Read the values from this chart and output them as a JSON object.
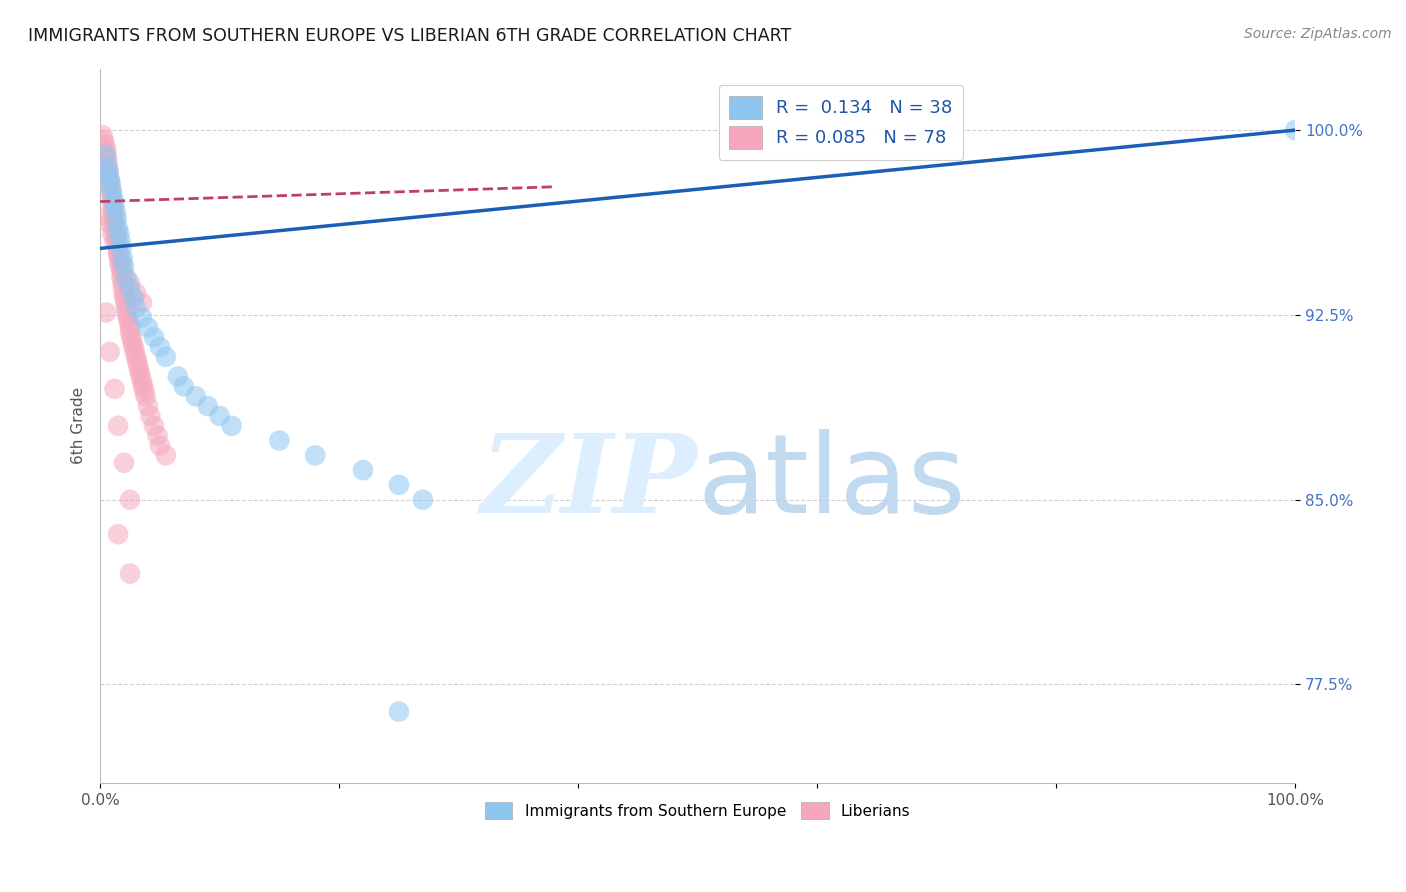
{
  "title": "IMMIGRANTS FROM SOUTHERN EUROPE VS LIBERIAN 6TH GRADE CORRELATION CHART",
  "source": "Source: ZipAtlas.com",
  "ylabel": "6th Grade",
  "xlim": [
    0,
    1.0
  ],
  "ylim": [
    0.735,
    1.025
  ],
  "yticks": [
    0.775,
    0.85,
    0.925,
    1.0
  ],
  "yticklabels": [
    "77.5%",
    "85.0%",
    "92.5%",
    "100.0%"
  ],
  "blue_R": 0.134,
  "blue_N": 38,
  "pink_R": 0.085,
  "pink_N": 78,
  "blue_label": "Immigrants from Southern Europe",
  "pink_label": "Liberians",
  "title_color": "#1a1a1a",
  "source_color": "#888888",
  "ylabel_color": "#555555",
  "ytick_color": "#4472c4",
  "xtick_color": "#555555",
  "blue_color": "#8ec6f0",
  "pink_color": "#f5a8bc",
  "blue_line_color": "#1a5fb4",
  "pink_line_color": "#c04060",
  "grid_color": "#cccccc",
  "blue_trend_x": [
    0.0,
    1.0
  ],
  "blue_trend_y": [
    0.952,
    1.0
  ],
  "pink_trend_x": [
    0.0,
    0.38
  ],
  "pink_trend_y": [
    0.971,
    0.977
  ],
  "blue_scatter_x": [
    0.005,
    0.006,
    0.007,
    0.008,
    0.009,
    0.01,
    0.011,
    0.012,
    0.013,
    0.014,
    0.015,
    0.016,
    0.017,
    0.018,
    0.019,
    0.02,
    0.022,
    0.025,
    0.028,
    0.03,
    0.035,
    0.04,
    0.045,
    0.05,
    0.055,
    0.065,
    0.07,
    0.08,
    0.09,
    0.1,
    0.11,
    0.15,
    0.18,
    0.22,
    0.25,
    0.27,
    0.25,
    1.0
  ],
  "blue_scatter_y": [
    0.99,
    0.985,
    0.983,
    0.98,
    0.978,
    0.975,
    0.972,
    0.97,
    0.967,
    0.964,
    0.96,
    0.958,
    0.955,
    0.952,
    0.948,
    0.945,
    0.94,
    0.936,
    0.932,
    0.928,
    0.924,
    0.92,
    0.916,
    0.912,
    0.908,
    0.9,
    0.896,
    0.892,
    0.888,
    0.884,
    0.88,
    0.874,
    0.868,
    0.862,
    0.856,
    0.85,
    0.764,
    1.0
  ],
  "pink_scatter_x": [
    0.002,
    0.003,
    0.004,
    0.005,
    0.005,
    0.006,
    0.006,
    0.007,
    0.007,
    0.008,
    0.008,
    0.009,
    0.009,
    0.01,
    0.01,
    0.011,
    0.011,
    0.012,
    0.012,
    0.013,
    0.013,
    0.014,
    0.014,
    0.015,
    0.015,
    0.016,
    0.016,
    0.017,
    0.018,
    0.018,
    0.019,
    0.019,
    0.02,
    0.02,
    0.021,
    0.022,
    0.022,
    0.023,
    0.024,
    0.025,
    0.025,
    0.026,
    0.027,
    0.028,
    0.029,
    0.03,
    0.031,
    0.032,
    0.033,
    0.034,
    0.035,
    0.036,
    0.037,
    0.038,
    0.04,
    0.042,
    0.045,
    0.048,
    0.05,
    0.055,
    0.006,
    0.008,
    0.01,
    0.012,
    0.015,
    0.018,
    0.02,
    0.025,
    0.03,
    0.035,
    0.005,
    0.008,
    0.012,
    0.015,
    0.02,
    0.025,
    0.015,
    0.025
  ],
  "pink_scatter_y": [
    0.998,
    0.996,
    0.994,
    0.992,
    0.99,
    0.988,
    0.986,
    0.984,
    0.982,
    0.98,
    0.978,
    0.976,
    0.974,
    0.972,
    0.97,
    0.968,
    0.966,
    0.964,
    0.962,
    0.96,
    0.958,
    0.956,
    0.954,
    0.952,
    0.95,
    0.948,
    0.946,
    0.944,
    0.942,
    0.94,
    0.938,
    0.936,
    0.934,
    0.932,
    0.93,
    0.928,
    0.926,
    0.924,
    0.922,
    0.92,
    0.918,
    0.916,
    0.914,
    0.912,
    0.91,
    0.908,
    0.906,
    0.904,
    0.902,
    0.9,
    0.898,
    0.896,
    0.894,
    0.892,
    0.888,
    0.884,
    0.88,
    0.876,
    0.872,
    0.868,
    0.965,
    0.962,
    0.958,
    0.955,
    0.95,
    0.946,
    0.942,
    0.938,
    0.934,
    0.93,
    0.926,
    0.91,
    0.895,
    0.88,
    0.865,
    0.85,
    0.836,
    0.82
  ]
}
